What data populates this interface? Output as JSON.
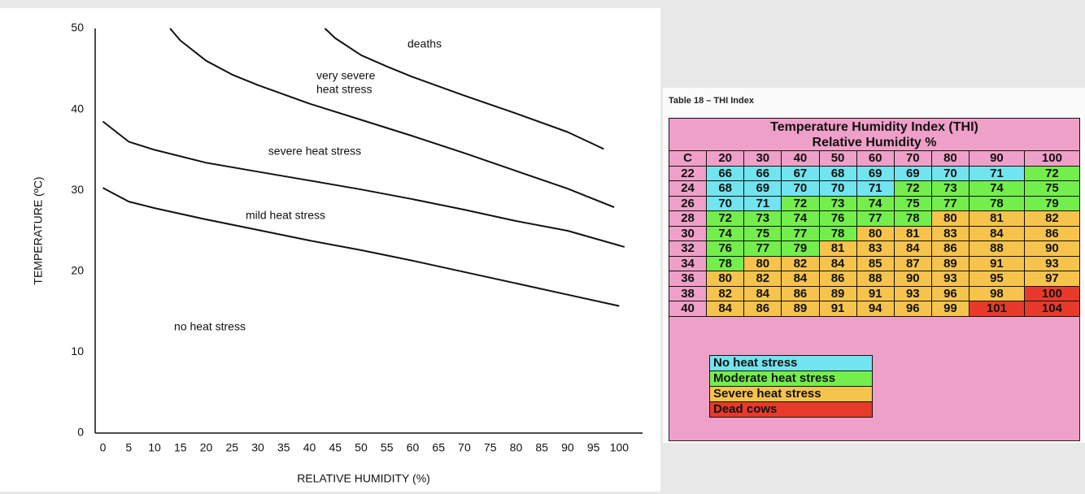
{
  "chart_data": {
    "type": "line",
    "x_label": "RELATIVE HUMIDITY (%)",
    "y_label": "TEMPERATURE (ºC)",
    "xlim": [
      -1.5,
      104.5
    ],
    "ylim": [
      0,
      50
    ],
    "xticks": [
      0,
      5,
      10,
      15,
      20,
      25,
      30,
      35,
      40,
      45,
      50,
      55,
      60,
      65,
      70,
      75,
      80,
      85,
      90,
      95,
      100
    ],
    "yticks": [
      0,
      10,
      20,
      30,
      40,
      50
    ],
    "grid": false,
    "series": [
      {
        "color": "#111111",
        "x": [
          0,
          5,
          10,
          20,
          30,
          40,
          50,
          60,
          70,
          80,
          90,
          100
        ],
        "values": [
          30.3,
          28.6,
          27.8,
          26.4,
          25.1,
          23.8,
          22.6,
          21.3,
          19.9,
          18.5,
          17.1,
          15.7
        ]
      },
      {
        "color": "#111111",
        "x": [
          0,
          5,
          10,
          20,
          30,
          40,
          50,
          60,
          70,
          80,
          90,
          101
        ],
        "values": [
          38.5,
          36,
          35,
          33.4,
          32.3,
          31.2,
          30.1,
          28.9,
          27.6,
          26.2,
          25,
          23
        ]
      },
      {
        "color": "#111111",
        "x": [
          13,
          15,
          20,
          25,
          30,
          40,
          50,
          60,
          70,
          80,
          90,
          99
        ],
        "values": [
          50,
          48.5,
          46,
          44.3,
          43,
          40.7,
          38.7,
          36.7,
          34.6,
          32.4,
          30.2,
          27.9
        ]
      },
      {
        "color": "#111111",
        "x": [
          43,
          45,
          50,
          55,
          60,
          70,
          80,
          90,
          97
        ],
        "values": [
          50,
          48.8,
          46.7,
          45.3,
          44,
          41.7,
          39.5,
          37.2,
          35.1
        ]
      }
    ],
    "annotations": [
      "deaths",
      "very severe",
      "heat stress",
      "severe heat stress",
      "mild heat stress",
      "no heat stress"
    ]
  },
  "table": {
    "caption": "Table 18 – THI Index",
    "title": "Temperature Humidity Index (THI)",
    "subtitle": "Relative Humidity %",
    "columns": [
      "C",
      20,
      30,
      40,
      50,
      60,
      70,
      80,
      90,
      100
    ],
    "rows": [
      [
        22,
        66,
        66,
        67,
        68,
        69,
        69,
        70,
        71,
        72
      ],
      [
        24,
        68,
        69,
        70,
        70,
        71,
        72,
        73,
        74,
        75
      ],
      [
        26,
        70,
        71,
        72,
        73,
        74,
        75,
        77,
        78,
        79
      ],
      [
        28,
        72,
        73,
        74,
        76,
        77,
        78,
        80,
        81,
        82
      ],
      [
        30,
        74,
        75,
        77,
        78,
        80,
        81,
        83,
        84,
        86
      ],
      [
        32,
        76,
        77,
        79,
        81,
        83,
        84,
        86,
        88,
        90
      ],
      [
        34,
        78,
        80,
        82,
        84,
        85,
        87,
        89,
        91,
        93
      ],
      [
        36,
        80,
        82,
        84,
        86,
        88,
        90,
        93,
        95,
        97
      ],
      [
        38,
        82,
        84,
        86,
        89,
        91,
        93,
        96,
        98,
        100
      ],
      [
        40,
        84,
        86,
        89,
        91,
        94,
        96,
        99,
        101,
        104
      ]
    ],
    "legend": [
      {
        "label": "No heat stress",
        "color": "#72e4ef"
      },
      {
        "label": "Moderate heat stress",
        "color": "#74ee4c"
      },
      {
        "label": "Severe heat stress",
        "color": "#f6c44c"
      },
      {
        "label": "Dead cows",
        "color": "#e83a2a"
      }
    ]
  }
}
